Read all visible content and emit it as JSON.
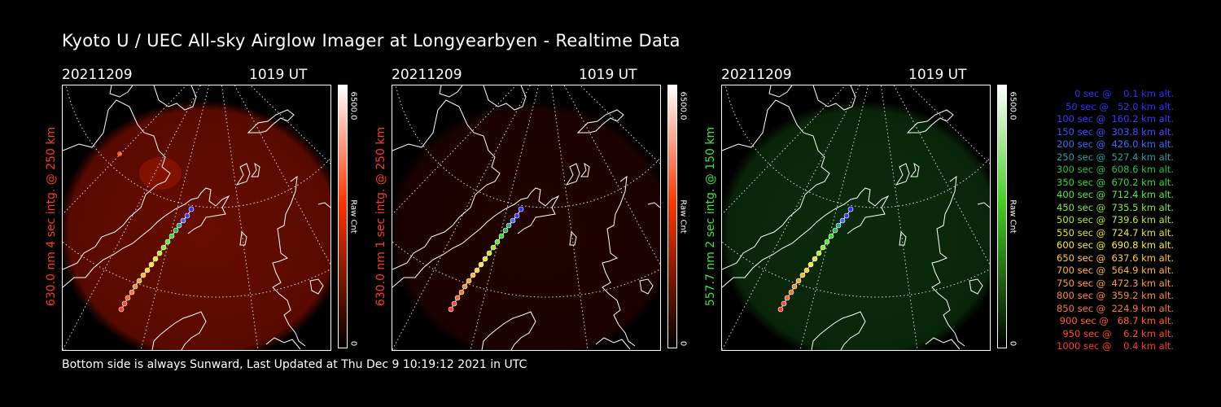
{
  "title": "Kyoto U / UEC All-sky Airglow Imager at Longyearbyen - Realtime Data",
  "footer": "Bottom side is always Sunward, Last Updated at Thu Dec  9 10:19:12 2021 in UTC",
  "panels": [
    {
      "date": "20211209",
      "time": "1019 UT",
      "side_label": "630.0 nm 4 sec intg. @ 250 km",
      "side_color": "#ff3a1a",
      "cbar_max": "6500.0",
      "cbar_min": "0",
      "cbar_unit": "Raw Cnt",
      "cbar_color": "#ff3300",
      "glow_color": "#8a1000",
      "glow_opacity": 0.75
    },
    {
      "date": "20211209",
      "time": "1019 UT",
      "side_label": "630.0 nm 1 sec intg. @ 250 km",
      "side_color": "#ff3a1a",
      "cbar_max": "6500.0",
      "cbar_min": "0",
      "cbar_unit": "Raw Cnt",
      "cbar_color": "#ff3300",
      "glow_color": "#3a0500",
      "glow_opacity": 0.55
    },
    {
      "date": "20211209",
      "time": "1019 UT",
      "side_label": "557.7 nm 2 sec intg. @ 150 km",
      "side_color": "#39e639",
      "cbar_max": "6500.0",
      "cbar_min": "0",
      "cbar_unit": "Raw Cnt",
      "cbar_color": "#44cc22",
      "glow_color": "#0e3a0e",
      "glow_opacity": 0.75
    }
  ],
  "legend": [
    {
      "text": "   0 sec @    0.1 km alt.",
      "color": "#2f2fff"
    },
    {
      "text": "  50 sec @   52.0 km alt.",
      "color": "#2f2fff"
    },
    {
      "text": " 100 sec @  160.2 km alt.",
      "color": "#3a3aff"
    },
    {
      "text": " 150 sec @  303.8 km alt.",
      "color": "#4050ff"
    },
    {
      "text": " 200 sec @  426.0 km alt.",
      "color": "#3c6cff"
    },
    {
      "text": " 250 sec @  527.4 km alt.",
      "color": "#2aa0a0"
    },
    {
      "text": " 300 sec @  608.6 km alt.",
      "color": "#22c04a"
    },
    {
      "text": " 350 sec @  670.2 km alt.",
      "color": "#33dd33"
    },
    {
      "text": " 400 sec @  712.4 km alt.",
      "color": "#55ee33"
    },
    {
      "text": " 450 sec @  735.5 km alt.",
      "color": "#88ee22"
    },
    {
      "text": " 500 sec @  739.6 km alt.",
      "color": "#bbee22"
    },
    {
      "text": " 550 sec @  724.7 km alt.",
      "color": "#e6e62a"
    },
    {
      "text": " 600 sec @  690.8 km alt.",
      "color": "#ffee33"
    },
    {
      "text": " 650 sec @  637.6 km alt.",
      "color": "#ffd030"
    },
    {
      "text": " 700 sec @  564.9 km alt.",
      "color": "#ffb830"
    },
    {
      "text": " 750 sec @  472.3 km alt.",
      "color": "#ffa030"
    },
    {
      "text": " 800 sec @  359.2 km alt.",
      "color": "#ff8a30"
    },
    {
      "text": " 850 sec @  224.9 km alt.",
      "color": "#ff7530"
    },
    {
      "text": " 900 sec @   68.7 km alt.",
      "color": "#ff6030"
    },
    {
      "text": " 950 sec @    6.2 km alt.",
      "color": "#ff4a30"
    },
    {
      "text": "1000 sec @    0.4 km alt.",
      "color": "#ff3a2a"
    }
  ]
}
